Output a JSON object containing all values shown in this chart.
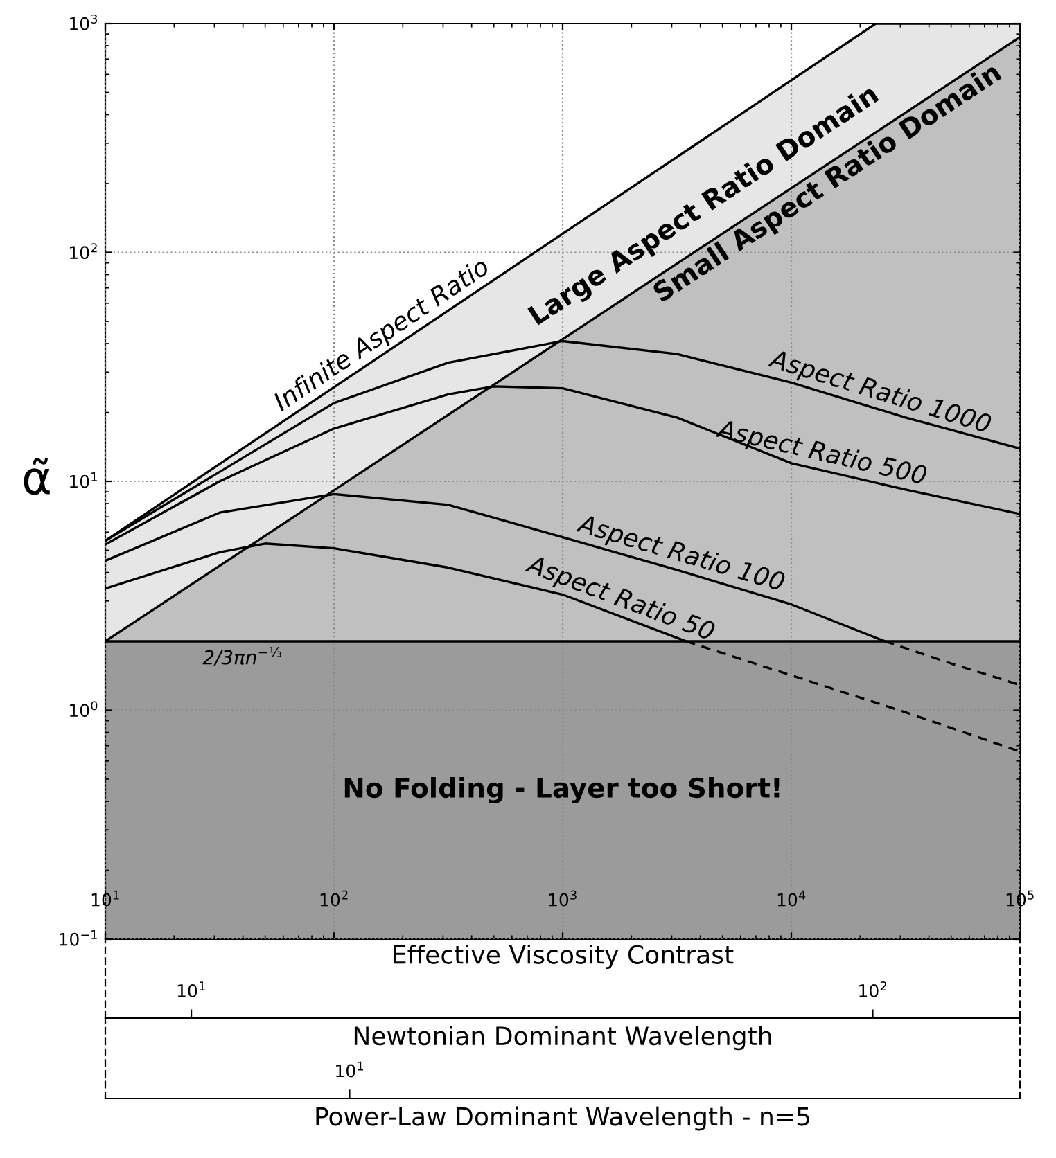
{
  "chart_data": [
    {
      "type": "line",
      "log": "xy",
      "xlabel": "Effective Viscosity Contrast",
      "ylabel": "α̃",
      "xlim": [
        10,
        100000
      ],
      "ylim": [
        0.1,
        1000
      ],
      "xticks": [
        {
          "value": 10,
          "label": "10$^{1}$"
        },
        {
          "value": 100,
          "label": "10$^{2}$"
        },
        {
          "value": 1000,
          "label": "10$^{3}$"
        },
        {
          "value": 10000,
          "label": "10$^{4}$"
        },
        {
          "value": 100000,
          "label": "10$^{5}$"
        }
      ],
      "yticks": [
        {
          "value": 0.1,
          "label": "10$^{−1}$"
        },
        {
          "value": 1,
          "label": "10$^{0}$"
        },
        {
          "value": 10,
          "label": "10$^{1}$"
        },
        {
          "value": 100,
          "label": "10$^{2}$"
        },
        {
          "value": 1000,
          "label": "10$^{3}$"
        }
      ],
      "grid": true,
      "annotations": [
        "Large Aspect Ratio Domain"
      ],
      "bands": [
        {
          "axis": "y",
          "from": 0.1,
          "to": 2,
          "label": "No Folding - Layer too Short!",
          "color": "#9b9b9b"
        }
      ],
      "ref_lines": [
        {
          "axis": "y",
          "value": 2,
          "label": "2/3πn$^{−⅓}$",
          "color": "#000000"
        }
      ],
      "series": [
        {
          "name": "Infinite Aspect Ratio",
          "type": "area",
          "color": "#e6e6e6",
          "x": [
            10,
            23400,
            100000
          ],
          "values": [
            5.5,
            1000,
            1000
          ]
        },
        {
          "name": "Small Aspect Ratio Domain",
          "type": "area",
          "color": "#c0c0c0",
          "x": [
            10,
            100000
          ],
          "values": [
            2,
            873
          ]
        },
        {
          "name": "Aspect Ratio 1000",
          "color": "#000000",
          "line_style": "solid",
          "x": [
            10,
            31.6,
            100,
            316,
            1000,
            3160,
            10000,
            31600,
            100000
          ],
          "values": [
            5.5,
            11,
            22,
            33,
            41,
            36,
            27,
            19,
            13.9
          ]
        },
        {
          "name": "Aspect Ratio 500",
          "color": "#000000",
          "line_style": "solid",
          "x": [
            10,
            31.6,
            100,
            316,
            500,
            1000,
            3160,
            10000,
            31600,
            100000
          ],
          "values": [
            5.3,
            10,
            17,
            24,
            26,
            25.5,
            19,
            12,
            9.2,
            7.2
          ]
        },
        {
          "name": "Aspect Ratio 100",
          "color": "#000000",
          "line_style": "solid",
          "x": [
            10,
            31.6,
            100,
            316,
            1000,
            3160,
            10000,
            25700
          ],
          "values": [
            4.5,
            7.3,
            8.8,
            7.9,
            5.7,
            4.1,
            2.9,
            2
          ]
        },
        {
          "color": "#000000",
          "line_style": "dashed",
          "x": [
            25700,
            50000,
            100000
          ],
          "values": [
            2,
            1.6,
            1.29
          ]
        },
        {
          "name": "Aspect Ratio 50",
          "color": "#000000",
          "line_style": "solid",
          "x": [
            10,
            31.6,
            50,
            100,
            316,
            1000,
            3470
          ],
          "values": [
            3.4,
            4.9,
            5.35,
            5.1,
            4.2,
            3.2,
            2
          ]
        },
        {
          "color": "#000000",
          "line_style": "dashed",
          "x": [
            3470,
            10000,
            31600,
            100000
          ],
          "values": [
            2,
            1.42,
            0.98,
            0.66
          ]
        }
      ]
    },
    {
      "type": "other",
      "xlabel": "Newtonian Dominant Wavelength",
      "annotations": [
        "10$^{1}$",
        "10$^{2}$"
      ]
    },
    {
      "type": "other",
      "xlabel": "Power-Law Dominant Wavelength - n=5",
      "annotations": [
        "10$^{1}$"
      ]
    }
  ]
}
